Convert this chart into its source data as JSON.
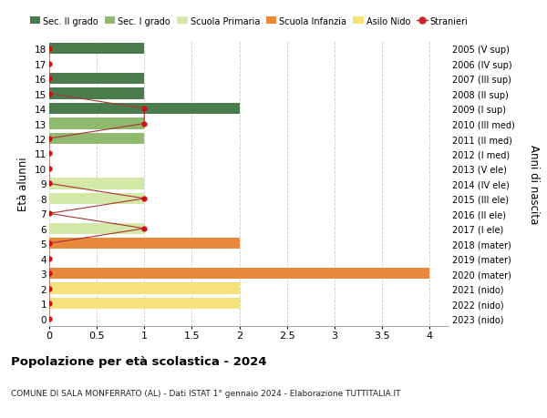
{
  "ages": [
    0,
    1,
    2,
    3,
    4,
    5,
    6,
    7,
    8,
    9,
    10,
    11,
    12,
    13,
    14,
    15,
    16,
    17,
    18
  ],
  "right_labels": [
    "2023 (nido)",
    "2022 (nido)",
    "2021 (nido)",
    "2020 (mater)",
    "2019 (mater)",
    "2018 (mater)",
    "2017 (I ele)",
    "2016 (II ele)",
    "2015 (III ele)",
    "2014 (IV ele)",
    "2013 (V ele)",
    "2012 (I med)",
    "2011 (II med)",
    "2010 (III med)",
    "2009 (I sup)",
    "2008 (II sup)",
    "2007 (III sup)",
    "2006 (IV sup)",
    "2005 (V sup)"
  ],
  "bar_values": [
    0,
    2,
    2,
    4,
    0,
    2,
    1,
    0,
    1,
    1,
    0,
    0,
    1,
    1,
    2,
    1,
    1,
    0,
    1
  ],
  "bar_colors": [
    "#f5e27a",
    "#f5e27a",
    "#f5e27a",
    "#e8883a",
    "#e8883a",
    "#e8883a",
    "#d4e8a8",
    "#d4e8a8",
    "#d4e8a8",
    "#d4e8a8",
    "#d4e8a8",
    "#8fba6e",
    "#8fba6e",
    "#8fba6e",
    "#4a7c4e",
    "#4a7c4e",
    "#4a7c4e",
    "#4a7c4e",
    "#4a7c4e"
  ],
  "stranieri_x": [
    0,
    0,
    0,
    0,
    0,
    0,
    1,
    0,
    1,
    0,
    0,
    0,
    0,
    1,
    1,
    0,
    0,
    0,
    0
  ],
  "xlim": [
    0,
    4.2
  ],
  "ylim": [
    -0.5,
    18.5
  ],
  "ylabel": "Età alunni",
  "right_ylabel": "Anni di nascita",
  "title": "Popolazione per età scolastica - 2024",
  "subtitle": "COMUNE DI SALA MONFERRATO (AL) - Dati ISTAT 1° gennaio 2024 - Elaborazione TUTTITALIA.IT",
  "legend_labels": [
    "Sec. II grado",
    "Sec. I grado",
    "Scuola Primaria",
    "Scuola Infanzia",
    "Asilo Nido",
    "Stranieri"
  ],
  "legend_colors": [
    "#4a7c4e",
    "#8fba6e",
    "#d4e8a8",
    "#e8883a",
    "#f5e27a",
    "#cc2222"
  ],
  "xticks": [
    0,
    0.5,
    1.0,
    1.5,
    2.0,
    2.5,
    3.0,
    3.5,
    4.0
  ],
  "bar_height": 0.75,
  "bg_color": "#ffffff",
  "grid_color": "#cccccc",
  "stranieri_line_color": "#aa3333",
  "stranieri_dot_color": "#cc1111"
}
